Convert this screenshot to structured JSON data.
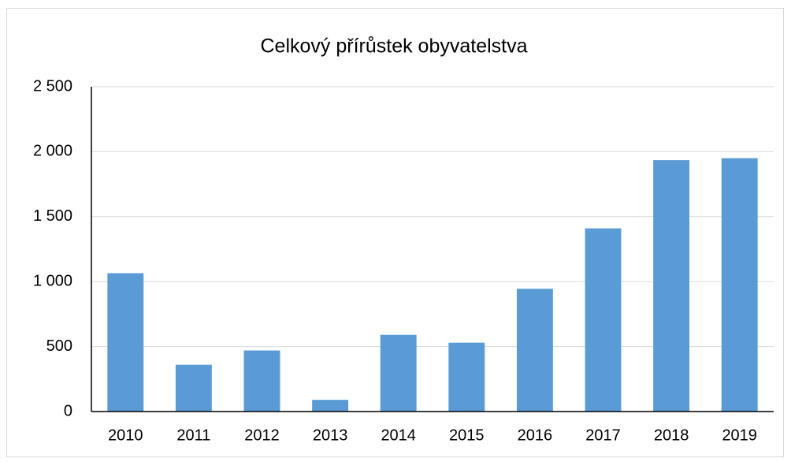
{
  "chart_data": {
    "type": "bar",
    "title": "Celkový přírůstek obyvatelstva",
    "categories": [
      "2010",
      "2011",
      "2012",
      "2013",
      "2014",
      "2015",
      "2016",
      "2017",
      "2018",
      "2019"
    ],
    "values": [
      1065,
      360,
      470,
      90,
      590,
      530,
      945,
      1410,
      1935,
      1950
    ],
    "color": "#5b9bd5",
    "ylim": [
      0,
      2500
    ],
    "yticks": [
      0,
      500,
      {
        "value": 1000,
        "label": "1 000"
      },
      {
        "value": 1500,
        "label": "1 500"
      },
      {
        "value": 2000,
        "label": "2 000"
      },
      {
        "value": 2500,
        "label": "2 500"
      }
    ],
    "grid": true
  }
}
